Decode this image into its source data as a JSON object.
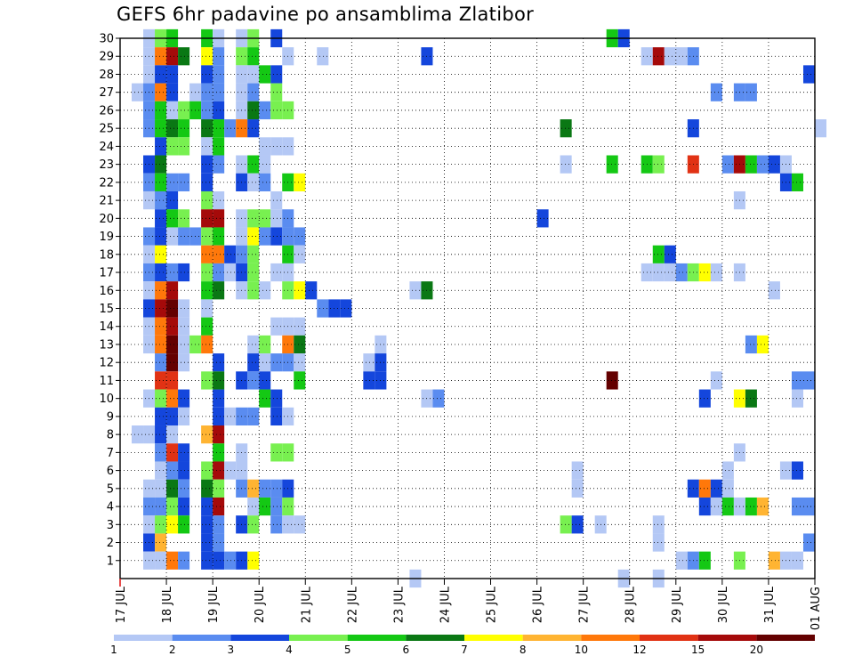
{
  "chart_data": {
    "type": "heatmap",
    "title": "GEFS 6hr padavine po ansamblima Zlatibor",
    "xlabel": "",
    "ylabel": "",
    "x_ticks": [
      {
        "label": "17 JUL",
        "step": 0
      },
      {
        "label": "18 JUL",
        "step": 4
      },
      {
        "label": "19 JUL",
        "step": 8
      },
      {
        "label": "20 JUL",
        "step": 12
      },
      {
        "label": "21 JUL",
        "step": 16
      },
      {
        "label": "22 JUL",
        "step": 20
      },
      {
        "label": "23 JUL",
        "step": 24
      },
      {
        "label": "24 JUL",
        "step": 28
      },
      {
        "label": "25 JUL",
        "step": 32
      },
      {
        "label": "26 JUL",
        "step": 36
      },
      {
        "label": "27 JUL",
        "step": 40
      },
      {
        "label": "28 JUL",
        "step": 44
      },
      {
        "label": "29 JUL",
        "step": 48
      },
      {
        "label": "30 JUL",
        "step": 52
      },
      {
        "label": "31 JUL",
        "step": 56
      },
      {
        "label": "01 AUG",
        "step": 60
      }
    ],
    "y_ticks": [
      1,
      2,
      3,
      4,
      5,
      6,
      7,
      8,
      9,
      10,
      11,
      12,
      13,
      14,
      15,
      16,
      17,
      18,
      19,
      20,
      21,
      22,
      23,
      24,
      25,
      26,
      27,
      28,
      29,
      30
    ],
    "xlim": [
      0,
      60
    ],
    "ylim": [
      0,
      30
    ],
    "grid": true,
    "colorbar": {
      "bins": [
        {
          "from": 1,
          "to": 2,
          "color": "#b4c8f5"
        },
        {
          "from": 2,
          "to": 3,
          "color": "#5a8cf0"
        },
        {
          "from": 3,
          "to": 4,
          "color": "#1446dc"
        },
        {
          "from": 4,
          "to": 5,
          "color": "#78f050"
        },
        {
          "from": 5,
          "to": 6,
          "color": "#14c814"
        },
        {
          "from": 6,
          "to": 7,
          "color": "#0a7814"
        },
        {
          "from": 7,
          "to": 8,
          "color": "#ffff00"
        },
        {
          "from": 8,
          "to": 10,
          "color": "#ffb432"
        },
        {
          "from": 10,
          "to": 12,
          "color": "#ff780a"
        },
        {
          "from": 12,
          "to": 15,
          "color": "#e13214"
        },
        {
          "from": 15,
          "to": 20,
          "color": "#a50a0a"
        },
        {
          "from": 20,
          "to": 30,
          "color": "#640000"
        }
      ],
      "labels": [
        "1",
        "2",
        "3",
        "4",
        "5",
        "6",
        "7",
        "8",
        "10",
        "12",
        "15",
        "20"
      ]
    },
    "cells": [
      [
        30,
        "2:1,3:4,4:5,7:5,8:1,10:1,11:4,13:3,42:5,43:3"
      ],
      [
        29,
        "2:1,3:9,4:11,5:6,7:7,8:2,10:4,11:5,14:1,17:1,26:3,45:1,46:11,47:1,48:1,49:2"
      ],
      [
        28,
        "2:1,3:3,4:3,7:3,8:2,10:1,11:1,12:5,13:3,59:3"
      ],
      [
        27,
        "1:1,2:2,3:9,4:3,6:1,7:2,8:2,10:1,11:2,13:4,51:2,53:2,54:2"
      ],
      [
        26,
        "2:2,3:5,4:1,5:4,6:5,7:2,8:3,10:1,11:6,12:2,13:4,14:4"
      ],
      [
        25,
        "2:2,3:5,4:6,5:5,7:6,8:5,9:2,10:9,11:3,38:6,49:3,60:1"
      ],
      [
        24,
        "3:3,4:4,5:4,7:1,8:5,12:1,13:1,14:1"
      ],
      [
        23,
        "2:3,3:6,7:3,8:2,10:1,11:5,12:1,38:1,42:5,45:5,46:4,49:10,52:2,53:11,54:5,55:2,56:3,57:1"
      ],
      [
        22,
        "2:2,3:5,4:2,5:2,7:3,10:3,11:1,12:2,14:5,15:7,57:3,58:5"
      ],
      [
        21,
        "2:1,3:2,4:3,7:4,8:1,13:1,53:1"
      ],
      [
        20,
        "3:3,4:5,5:4,7:11,8:11,10:1,11:4,12:4,13:1,14:2,36:3"
      ],
      [
        19,
        "2:2,3:3,4:1,5:2,6:2,7:4,8:5,10:1,11:7,12:2,13:3,14:2,15:2"
      ],
      [
        18,
        "2:1,3:7,7:9,8:9,9:3,10:2,11:4,14:5,15:1,46:5,47:3"
      ],
      [
        17,
        "2:2,3:3,4:2,5:3,7:4,8:2,9:1,10:3,11:4,13:1,14:1,45:1,46:1,47:1,48:2,49:4,50:7,51:1,53:1"
      ],
      [
        16,
        "2:1,3:9,4:11,7:5,8:6,10:1,11:4,12:1,14:4,15:7,16:3,25:1,26:6,56:1"
      ],
      [
        15,
        "2:3,3:11,4:12,5:1,7:1,17:2,18:3,19:3"
      ],
      [
        14,
        "2:1,3:9,4:11,5:1,7:5,13:1,14:1,15:1"
      ],
      [
        13,
        "2:1,3:9,4:12,5:1,6:4,7:9,11:1,12:4,14:9,15:6,22:1,54:2,55:7"
      ],
      [
        12,
        "3:2,4:12,5:1,8:3,11:3,12:1,13:2,14:2,15:1,21:1,22:3"
      ],
      [
        11,
        "3:10,4:10,7:4,8:6,10:3,11:2,12:3,15:5,21:3,22:3,42:12,51:1,58:2,59:2"
      ],
      [
        10,
        "2:1,3:4,4:9,5:3,8:3,12:5,13:3,26:1,27:2,50:3,53:7,54:6,58:1"
      ],
      [
        9,
        "3:3,4:3,5:1,8:3,9:1,10:2,11:2,13:3,14:1"
      ],
      [
        8,
        "1:1,2:1,3:3,4:1,7:8,8:11"
      ],
      [
        7,
        "3:2,4:10,5:3,8:5,10:1,13:4,14:4,53:1"
      ],
      [
        6,
        "3:1,4:2,5:3,7:4,8:11,9:1,10:1,39:1,52:1,57:1,58:3"
      ],
      [
        5,
        "2:1,3:1,4:6,5:2,7:6,8:4,10:2,11:8,12:2,13:2,14:3,39:1,49:3,50:9,51:3,52:1"
      ],
      [
        4,
        "2:2,3:2,4:4,5:3,7:3,8:11,11:1,12:5,13:2,14:4,50:3,51:1,52:5,53:1,54:5,55:8,58:2,59:2"
      ],
      [
        3,
        "2:1,3:4,4:7,5:5,7:3,8:2,10:3,11:4,13:2,14:1,15:1,38:4,39:3,41:1,46:1"
      ],
      [
        2,
        "2:3,3:8,7:3,8:2,46:1,59:2"
      ],
      [
        1,
        "2:1,3:1,4:9,5:2,7:3,8:3,9:2,10:3,11:7,48:1,49:2,50:5,53:4,56:8,57:1,58:1"
      ],
      [
        0,
        "25:1,43:1,46:1"
      ]
    ]
  }
}
